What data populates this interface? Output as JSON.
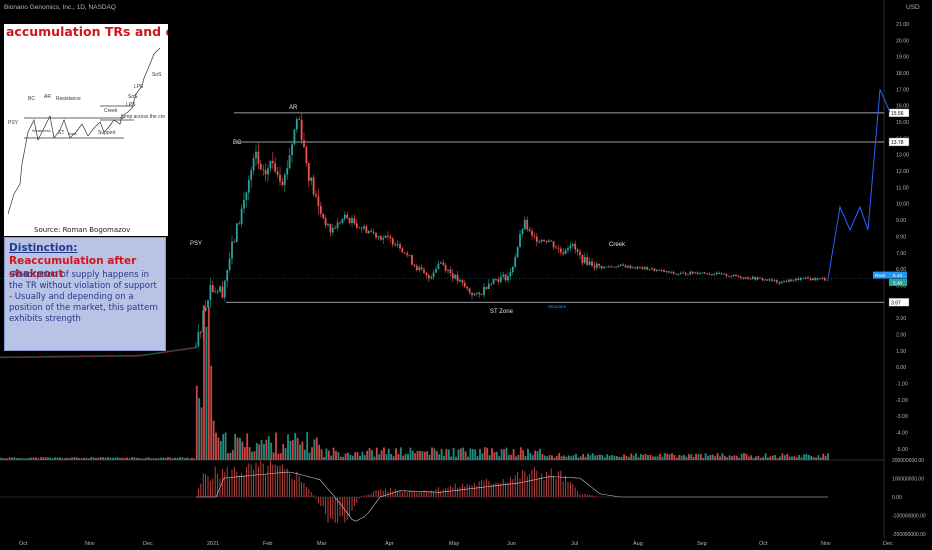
{
  "header": {
    "symbol_line": "Bionano Genomics, Inc., 1D, NASDAQ",
    "currency": "USD"
  },
  "inset": {
    "title": "accumulation TRs and exampl",
    "source": "Source: Roman Bogomazov",
    "diagram_labels": {
      "psy": "PSY",
      "bc": "BC",
      "ar": "AR",
      "resistance": "Resistance",
      "st": "ST",
      "area": "Area",
      "support": "Support",
      "creek": "Creek",
      "lps": "LPS",
      "sos": "SoS",
      "lpe": "LPE",
      "sos2": "SoS",
      "jump": "Jump across the cre",
      "weakness": "Weakness"
    }
  },
  "note": {
    "title_underlined": "Distinction:",
    "title_rest": "Reaccumulation after shakeout",
    "body": "-Absorption of supply happens in the TR without violation of support\n- Usually and depending on a position of the market, this pattern exhibits strength"
  },
  "chart_data": {
    "type": "candlestick",
    "title": "Bionano Genomics, Inc., 1D, NASDAQ",
    "x_ticks": [
      "Oct",
      "Nov",
      "Dec",
      "2021",
      "Feb",
      "Mar",
      "Apr",
      "May",
      "Jun",
      "Jul",
      "Aug",
      "Sep",
      "Oct",
      "Nov",
      "Dec"
    ],
    "price_axis": {
      "ticks": [
        "21.00",
        "20.00",
        "19.00",
        "18.00",
        "17.00",
        "16.00",
        "15.00",
        "14.00",
        "13.00",
        "12.00",
        "11.00",
        "10.00",
        "9.00",
        "8.00",
        "7.00",
        "6.00",
        "5.00",
        "4.00",
        "3.00",
        "2.00",
        "1.00",
        "0.00",
        "-1.00",
        "-2.00",
        "-3.00",
        "-4.00",
        "-5.00"
      ],
      "range": [
        -5,
        22
      ]
    },
    "osc_axis": {
      "ticks": [
        "200000000.00",
        "100000000.00",
        "0.00",
        "-100000000.00",
        "-200000000.00"
      ],
      "range": [
        -200000000,
        200000000
      ]
    },
    "horizontal_levels": [
      {
        "value": 15.56,
        "label": "15.56"
      },
      {
        "value": 13.78,
        "label": "13.78"
      },
      {
        "value": 3.97,
        "label": "3.97"
      }
    ],
    "price_badges": [
      {
        "label": "Real",
        "value": "5.42",
        "color": "#2196f3"
      },
      {
        "label": "",
        "value": "5.40",
        "color": "#26a69a"
      }
    ],
    "annotations": [
      "PSY",
      "BC",
      "AR",
      "ST Zone",
      "Creek",
      "Structure"
    ],
    "projection": {
      "color": "#2962ff",
      "points": [
        [
          5.4,
          0
        ],
        [
          9.8,
          0
        ],
        [
          8.4,
          0
        ],
        [
          9.8,
          0
        ],
        [
          8.4,
          0
        ],
        [
          17.0,
          0
        ],
        [
          15.6,
          0
        ]
      ]
    },
    "price_path_anchors": [
      [
        "Oct",
        0.6
      ],
      [
        "Dec",
        0.7
      ],
      [
        "Dec-late",
        1.1
      ],
      [
        "2021",
        3.5
      ],
      [
        "2021+",
        5.2
      ],
      [
        "Jan-mid",
        6.8
      ],
      [
        "Jan-end",
        10.2
      ],
      [
        "Feb-start",
        13.0
      ],
      [
        "Feb-mid",
        11.4
      ],
      [
        "Feb-late",
        15.56
      ],
      [
        "Mar-start",
        12.0
      ],
      [
        "Mar",
        9.8
      ],
      [
        "Mar-mid",
        8.3
      ],
      [
        "Mar-late",
        9.0
      ],
      [
        "Apr",
        7.6
      ],
      [
        "Apr-mid",
        6.3
      ],
      [
        "Apr-late",
        5.4
      ],
      [
        "May",
        5.7
      ],
      [
        "May-mid",
        4.3
      ],
      [
        "May-late",
        5.0
      ],
      [
        "Jun",
        8.9
      ],
      [
        "Jun-mid",
        7.8
      ],
      [
        "Jul",
        7.2
      ],
      [
        "Jul-mid",
        6.2
      ],
      [
        "Aug",
        6.0
      ],
      [
        "Aug-mid",
        5.8
      ],
      [
        "Sep",
        5.6
      ],
      [
        "Sep-mid",
        5.7
      ],
      [
        "Oct",
        5.3
      ],
      [
        "Oct-mid",
        5.2
      ],
      [
        "Nov",
        5.4
      ]
    ]
  },
  "colors": {
    "bg": "#000000",
    "up": "#26a69a",
    "down": "#ef5350",
    "axis_text": "#b2b5be",
    "line": "#d1d4dc",
    "projection": "#2962ff"
  }
}
